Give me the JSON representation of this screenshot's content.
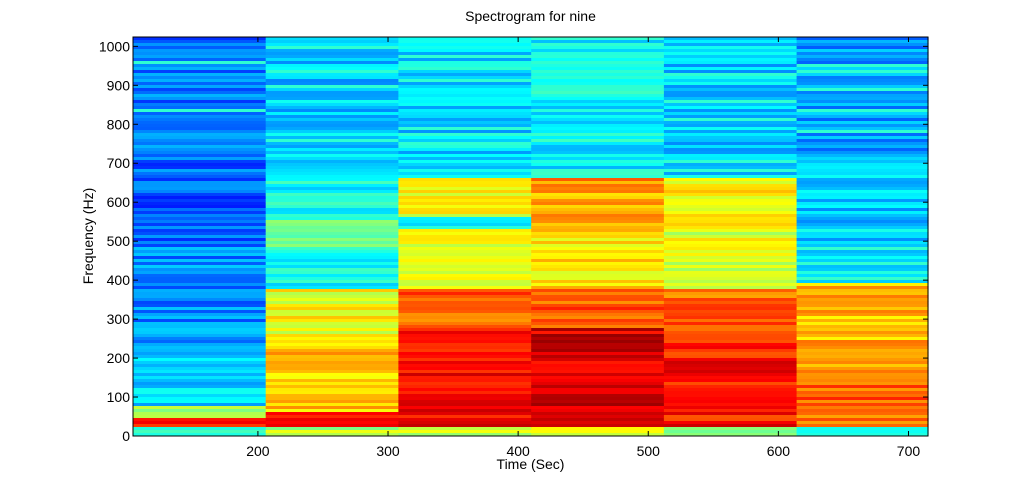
{
  "chart_data": {
    "type": "heatmap",
    "title": "Spectrogram for nine",
    "xlabel": "Time (Sec)",
    "ylabel": "Frequency (Hz)",
    "xlim": [
      104,
      715
    ],
    "ylim": [
      0,
      1024
    ],
    "xticks": [
      200,
      300,
      400,
      500,
      600,
      700
    ],
    "yticks": [
      0,
      100,
      200,
      300,
      400,
      500,
      600,
      700,
      800,
      900,
      1000
    ],
    "colormap": [
      "#00008f",
      "#0000ff",
      "#0080ff",
      "#00ffff",
      "#80ff80",
      "#ffff00",
      "#ff8000",
      "#ff0000",
      "#800000"
    ],
    "time_segments": [
      {
        "t_start": 104,
        "t_end": 206,
        "bands": [
          {
            "f_start": 0,
            "f_end": 20,
            "level": 0.45
          },
          {
            "f_start": 20,
            "f_end": 45,
            "level": 0.82
          },
          {
            "f_start": 45,
            "f_end": 75,
            "level": 0.55
          },
          {
            "f_start": 75,
            "f_end": 220,
            "level": 0.32
          },
          {
            "f_start": 220,
            "f_end": 500,
            "level": 0.26
          },
          {
            "f_start": 500,
            "f_end": 700,
            "level": 0.22
          },
          {
            "f_start": 700,
            "f_end": 1024,
            "level": 0.24
          }
        ]
      },
      {
        "t_start": 206,
        "t_end": 308,
        "bands": [
          {
            "f_start": 0,
            "f_end": 20,
            "level": 0.55
          },
          {
            "f_start": 20,
            "f_end": 60,
            "level": 0.85
          },
          {
            "f_start": 60,
            "f_end": 240,
            "level": 0.68
          },
          {
            "f_start": 240,
            "f_end": 380,
            "level": 0.62
          },
          {
            "f_start": 380,
            "f_end": 480,
            "level": 0.38
          },
          {
            "f_start": 480,
            "f_end": 560,
            "level": 0.46
          },
          {
            "f_start": 560,
            "f_end": 660,
            "level": 0.38
          },
          {
            "f_start": 660,
            "f_end": 1024,
            "level": 0.32
          }
        ]
      },
      {
        "t_start": 308,
        "t_end": 410,
        "bands": [
          {
            "f_start": 0,
            "f_end": 20,
            "level": 0.55
          },
          {
            "f_start": 20,
            "f_end": 270,
            "level": 0.88
          },
          {
            "f_start": 270,
            "f_end": 380,
            "level": 0.78
          },
          {
            "f_start": 380,
            "f_end": 530,
            "level": 0.6
          },
          {
            "f_start": 530,
            "f_end": 560,
            "level": 0.4
          },
          {
            "f_start": 560,
            "f_end": 660,
            "level": 0.62
          },
          {
            "f_start": 660,
            "f_end": 1024,
            "level": 0.34
          }
        ]
      },
      {
        "t_start": 410,
        "t_end": 512,
        "bands": [
          {
            "f_start": 0,
            "f_end": 20,
            "level": 0.58
          },
          {
            "f_start": 20,
            "f_end": 280,
            "level": 0.92
          },
          {
            "f_start": 280,
            "f_end": 380,
            "level": 0.8
          },
          {
            "f_start": 380,
            "f_end": 540,
            "level": 0.64
          },
          {
            "f_start": 540,
            "f_end": 660,
            "level": 0.72
          },
          {
            "f_start": 660,
            "f_end": 1024,
            "level": 0.37
          }
        ]
      },
      {
        "t_start": 512,
        "t_end": 614,
        "bands": [
          {
            "f_start": 0,
            "f_end": 20,
            "level": 0.55
          },
          {
            "f_start": 20,
            "f_end": 270,
            "level": 0.86
          },
          {
            "f_start": 270,
            "f_end": 380,
            "level": 0.78
          },
          {
            "f_start": 380,
            "f_end": 540,
            "level": 0.6
          },
          {
            "f_start": 540,
            "f_end": 660,
            "level": 0.63
          },
          {
            "f_start": 660,
            "f_end": 1024,
            "level": 0.33
          }
        ]
      },
      {
        "t_start": 614,
        "t_end": 715,
        "bands": [
          {
            "f_start": 0,
            "f_end": 20,
            "level": 0.45
          },
          {
            "f_start": 20,
            "f_end": 130,
            "level": 0.78
          },
          {
            "f_start": 130,
            "f_end": 390,
            "level": 0.7
          },
          {
            "f_start": 390,
            "f_end": 500,
            "level": 0.36
          },
          {
            "f_start": 500,
            "f_end": 700,
            "level": 0.33
          },
          {
            "f_start": 700,
            "f_end": 1024,
            "level": 0.28
          }
        ]
      }
    ]
  }
}
